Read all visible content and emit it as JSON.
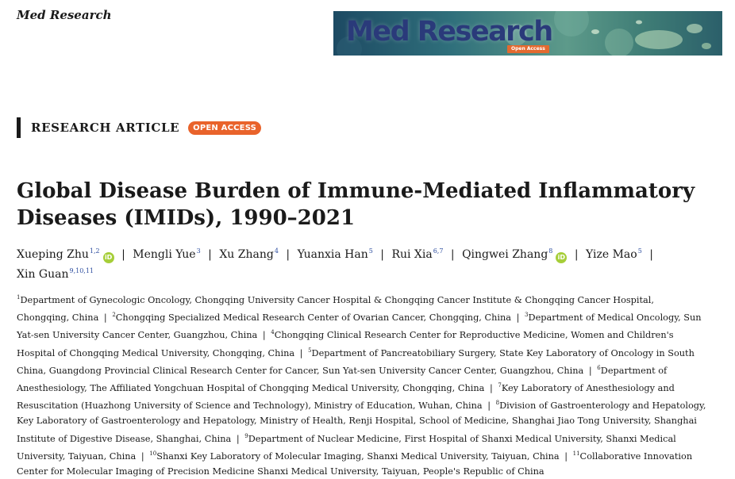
{
  "journal": {
    "name": "Med Research"
  },
  "banner": {
    "title": "Med Research",
    "badge": "Open Access"
  },
  "article_type": {
    "label": "RESEARCH ARTICLE",
    "badge": "OPEN ACCESS"
  },
  "title": "Global Disease Burden of Immune-Mediated Inflammatory Diseases (IMIDs), 1990–2021",
  "authors": [
    {
      "name": "Xueping Zhu",
      "sup": "1,2",
      "orcid": true
    },
    {
      "name": "Mengli Yue",
      "sup": "3",
      "orcid": false
    },
    {
      "name": "Xu Zhang",
      "sup": "4",
      "orcid": false
    },
    {
      "name": "Yuanxia Han",
      "sup": "5",
      "orcid": false
    },
    {
      "name": "Rui Xia",
      "sup": "6,7",
      "orcid": false
    },
    {
      "name": "Qingwei Zhang",
      "sup": "8",
      "orcid": true
    },
    {
      "name": "Yize Mao",
      "sup": "5",
      "orcid": false
    },
    {
      "name": "Xin Guan",
      "sup": "9,10,11",
      "orcid": false
    }
  ],
  "author_separator": "|",
  "orcid_label": "iD",
  "affiliations": [
    {
      "num": "1",
      "text": "Department of Gynecologic Oncology, Chongqing University Cancer Hospital & Chongqing Cancer Institute & Chongqing Cancer Hospital, Chongqing, China"
    },
    {
      "num": "2",
      "text": "Chongqing Specialized Medical Research Center of Ovarian Cancer, Chongqing, China"
    },
    {
      "num": "3",
      "text": "Department of Medical Oncology, Sun Yat-sen University Cancer Center, Guangzhou, China"
    },
    {
      "num": "4",
      "text": "Chongqing Clinical Research Center for Reproductive Medicine, Women and Children's Hospital of Chongqing Medical University, Chongqing, China"
    },
    {
      "num": "5",
      "text": "Department of Pancreatobiliary Surgery, State Key Laboratory of Oncology in South China, Guangdong Provincial Clinical Research Center for Cancer, Sun Yat-sen University Cancer Center, Guangzhou, China"
    },
    {
      "num": "6",
      "text": "Department of Anesthesiology, The Affiliated Yongchuan Hospital of Chongqing Medical University, Chongqing, China"
    },
    {
      "num": "7",
      "text": "Key Laboratory of Anesthesiology and Resuscitation (Huazhong University of Science and Technology), Ministry of Education, Wuhan, China"
    },
    {
      "num": "8",
      "text": "Division of Gastroenterology and Hepatology, Key Laboratory of Gastroenterology and Hepatology, Ministry of Health, Renji Hospital, School of Medicine, Shanghai Jiao Tong University, Shanghai Institute of Digestive Disease, Shanghai, China"
    },
    {
      "num": "9",
      "text": "Department of Nuclear Medicine, First Hospital of Shanxi Medical University, Shanxi Medical University, Taiyuan, China"
    },
    {
      "num": "10",
      "text": "Shanxi Key Laboratory of Molecular Imaging, Shanxi Medical University, Taiyuan, China"
    },
    {
      "num": "11",
      "text": "Collaborative Innovation Center for Molecular Imaging of Precision Medicine Shanxi Medical University, Taiyuan, People's Republic of China"
    }
  ],
  "colors": {
    "accent": "#e9632b",
    "orcid": "#a6ce39",
    "superscript": "#2f4fa0",
    "banner_text": "#2a3a7a"
  }
}
